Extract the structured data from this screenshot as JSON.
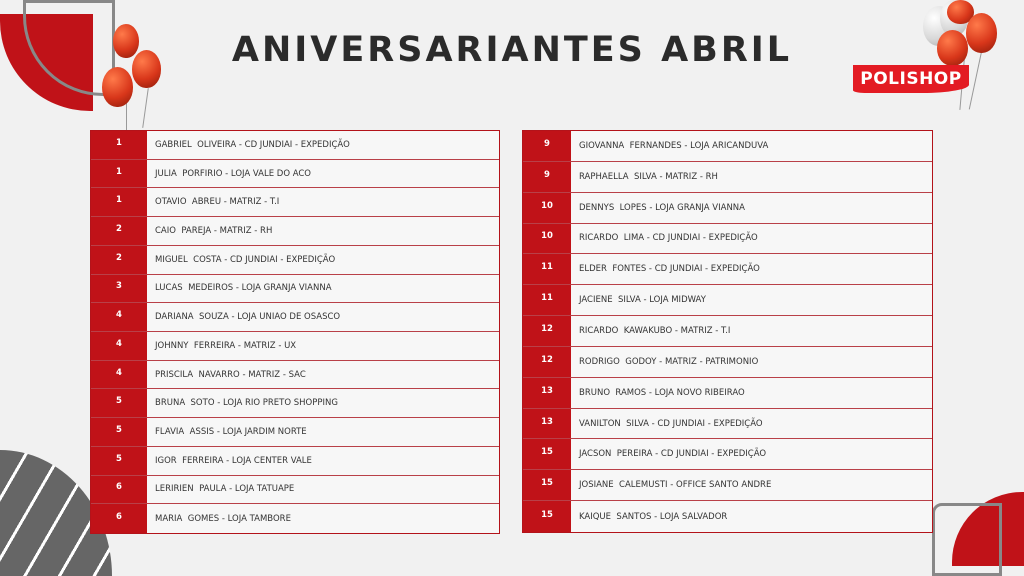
{
  "title": "ANIVERSARIANTES ABRIL",
  "brand": {
    "logo_text": "POLISHOP",
    "accent": "#c01218"
  },
  "left_table": [
    {
      "day": "1",
      "name": "GABRIEL  OLIVEIRA - CD JUNDIAI - EXPEDIÇÃO"
    },
    {
      "day": "1",
      "name": "JULIA  PORFIRIO - LOJA VALE DO ACO"
    },
    {
      "day": "1",
      "name": "OTAVIO  ABREU - MATRIZ - T.I"
    },
    {
      "day": "2",
      "name": "CAIO  PAREJA - MATRIZ - RH"
    },
    {
      "day": "2",
      "name": "MIGUEL  COSTA - CD JUNDIAI - EXPEDIÇÃO"
    },
    {
      "day": "3",
      "name": "LUCAS  MEDEIROS - LOJA GRANJA VIANNA"
    },
    {
      "day": "4",
      "name": "DARIANA  SOUZA - LOJA UNIAO DE OSASCO"
    },
    {
      "day": "4",
      "name": "JOHNNY  FERREIRA - MATRIZ - UX"
    },
    {
      "day": "4",
      "name": "PRISCILA  NAVARRO - MATRIZ - SAC"
    },
    {
      "day": "5",
      "name": "BRUNA  SOTO - LOJA RIO PRETO SHOPPING"
    },
    {
      "day": "5",
      "name": "FLAVIA  ASSIS - LOJA JARDIM NORTE"
    },
    {
      "day": "5",
      "name": "IGOR  FERREIRA - LOJA CENTER VALE"
    },
    {
      "day": "6",
      "name": "LERIRIEN  PAULA - LOJA TATUAPE"
    },
    {
      "day": "6",
      "name": "MARIA  GOMES - LOJA TAMBORE"
    }
  ],
  "right_table": [
    {
      "day": "9",
      "name": "GIOVANNA  FERNANDES - LOJA ARICANDUVA"
    },
    {
      "day": "9",
      "name": "RAPHAELLA  SILVA - MATRIZ - RH"
    },
    {
      "day": "10",
      "name": "DENNYS  LOPES - LOJA GRANJA VIANNA"
    },
    {
      "day": "10",
      "name": "RICARDO  LIMA - CD JUNDIAI - EXPEDIÇÃO"
    },
    {
      "day": "11",
      "name": "ELDER  FONTES - CD JUNDIAI - EXPEDIÇÃO"
    },
    {
      "day": "11",
      "name": "JACIENE  SILVA - LOJA MIDWAY"
    },
    {
      "day": "12",
      "name": "RICARDO  KAWAKUBO - MATRIZ - T.I"
    },
    {
      "day": "12",
      "name": "RODRIGO  GODOY - MATRIZ - PATRIMONIO"
    },
    {
      "day": "13",
      "name": "BRUNO  RAMOS - LOJA NOVO RIBEIRAO"
    },
    {
      "day": "13",
      "name": "VANILTON  SILVA - CD JUNDIAI - EXPEDIÇÃO"
    },
    {
      "day": "15",
      "name": "JACSON  PEREIRA - CD JUNDIAI - EXPEDIÇÃO"
    },
    {
      "day": "15",
      "name": "JOSIANE  CALEMUSTI - OFFICE SANTO ANDRE"
    },
    {
      "day": "15",
      "name": "KAIQUE  SANTOS - LOJA SALVADOR"
    }
  ]
}
